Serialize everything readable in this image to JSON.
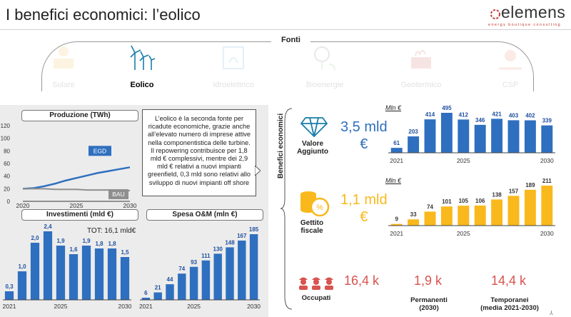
{
  "header": {
    "title": "I benefici economici: l’eolico"
  },
  "logo": {
    "word": "elemens",
    "tagline": "energy boutique consulting",
    "color": "#c23a2e"
  },
  "fonti": {
    "label": "Fonti",
    "sources": [
      {
        "label": "Solare",
        "icon": "sun-panel-icon",
        "active": false
      },
      {
        "label": "Eolico",
        "icon": "wind-turbine-icon",
        "active": true
      },
      {
        "label": "Idroelettrico",
        "icon": "hydro-icon",
        "active": false
      },
      {
        "label": "Bioenergie",
        "icon": "bioenergy-icon",
        "active": false
      },
      {
        "label": "Geotermico",
        "icon": "geothermal-icon",
        "active": false
      },
      {
        "label": "CSP",
        "icon": "csp-sun-icon",
        "active": false
      }
    ]
  },
  "left": {
    "text": "L’eolico è la seconda fonte per ricadute economiche, grazie anche all’elevato numero di imprese attive nella componentistica delle turbine. Il repowering contribuisce per 1,8 mld € complessivi, mentre dei 2,9 mld € relativi a nuovi impianti greenfield, 0,3 mld sono relativi allo sviluppo di nuovi impianti off shore",
    "tot": "TOT: 16,1 mld€"
  },
  "right": {
    "side_label": "Benefici economici",
    "valore": {
      "label": "Valore\nAggiunto",
      "value": "3,5 mld\n€"
    },
    "gettito": {
      "label": "Gettito\nfiscale",
      "value": "1,1 mld\n€"
    },
    "occupati": {
      "label": "Occupati",
      "total": "16,4 k",
      "permanenti_value": "1,9 k",
      "permanenti_label": "Permanenti\n(2030)",
      "temporanei_value": "14,4 k",
      "temporanei_label": "Temporanei\n(media 2021-2030)"
    },
    "page_mark": "⅄"
  },
  "colors": {
    "blue": "#2f6fbf",
    "gold": "#f9b81c",
    "red": "#d9534f",
    "bau": "#8f8f8f"
  },
  "chart_data": [
    {
      "id": "produzione",
      "type": "line",
      "title": "Produzione (TWh)",
      "x": [
        2020,
        2021,
        2022,
        2023,
        2024,
        2025,
        2026,
        2027,
        2028,
        2029,
        2030
      ],
      "series": [
        {
          "name": "EGD",
          "values": [
            20,
            21,
            24,
            28,
            33,
            37,
            41,
            45,
            48,
            51,
            54
          ]
        },
        {
          "name": "BAU",
          "values": [
            20,
            20,
            20,
            19,
            19,
            19,
            18,
            18,
            18,
            17,
            17
          ]
        }
      ],
      "y_ticks": [
        0,
        20,
        40,
        60,
        80,
        100,
        120
      ],
      "x_tick_labels": [
        "2020",
        "2025",
        "2030"
      ],
      "ylim": [
        0,
        120
      ]
    },
    {
      "id": "investimenti",
      "type": "bar",
      "title": "Investimenti (mld €)",
      "categories": [
        "2021",
        "2022",
        "2023",
        "2024",
        "2025",
        "2026",
        "2027",
        "2028",
        "2029",
        "2030"
      ],
      "values": [
        0.3,
        1.0,
        2.0,
        2.4,
        1.9,
        1.6,
        1.9,
        1.8,
        1.8,
        1.5
      ],
      "labels": [
        "0,3",
        "1,0",
        "2,0",
        "2,4",
        "1,9",
        "1,6",
        "1,9",
        "1,8",
        "1,8",
        "1,5"
      ],
      "x_tick_labels": [
        "2021",
        "2025",
        "2030"
      ],
      "ylim": [
        0,
        2.4
      ]
    },
    {
      "id": "spesa_om",
      "type": "bar",
      "title": "Spesa O&M (mln €)",
      "categories": [
        "2021",
        "2022",
        "2023",
        "2024",
        "2025",
        "2026",
        "2027",
        "2028",
        "2029",
        "2030"
      ],
      "values": [
        6,
        21,
        44,
        74,
        93,
        111,
        130,
        148,
        167,
        185
      ],
      "labels": [
        "6",
        "21",
        "44",
        "74",
        "93",
        "111",
        "130",
        "148",
        "167",
        "185"
      ],
      "x_tick_labels": [
        "2021",
        "2025",
        "2030"
      ],
      "ylim": [
        0,
        185
      ]
    },
    {
      "id": "valore_aggiunto",
      "type": "bar",
      "unit": "Mln €",
      "categories": [
        "2021",
        "2022",
        "2023",
        "2024",
        "2025",
        "2026",
        "2027",
        "2028",
        "2029",
        "2030"
      ],
      "values": [
        61,
        203,
        414,
        495,
        412,
        346,
        421,
        403,
        402,
        339
      ],
      "x_tick_labels": [
        "2021",
        "2025",
        "2030"
      ],
      "ylim": [
        0,
        495
      ]
    },
    {
      "id": "gettito",
      "type": "bar",
      "unit": "Mln €",
      "categories": [
        "2021",
        "2022",
        "2023",
        "2024",
        "2025",
        "2026",
        "2027",
        "2028",
        "2029",
        "2030"
      ],
      "values": [
        9,
        33,
        74,
        101,
        105,
        106,
        138,
        157,
        189,
        211
      ],
      "x_tick_labels": [
        "2021",
        "2025",
        "2030"
      ],
      "ylim": [
        0,
        211
      ]
    }
  ]
}
